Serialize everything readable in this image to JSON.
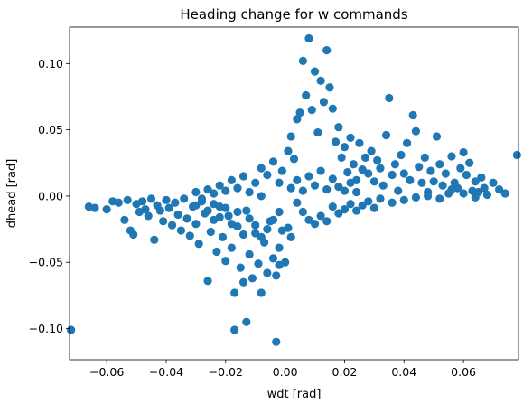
{
  "chart_data": {
    "type": "scatter",
    "title": "Heading change for w commands",
    "xlabel": "wdt [rad]",
    "ylabel": "dhead [rad]",
    "xlim": [
      -0.0725,
      0.0785
    ],
    "ylim": [
      -0.1235,
      0.1275
    ],
    "xticks": [
      -0.06,
      -0.04,
      -0.02,
      0.0,
      0.02,
      0.04,
      0.06
    ],
    "xtick_labels": [
      "−0.06",
      "−0.04",
      "−0.02",
      "0.00",
      "0.02",
      "0.04",
      "0.06"
    ],
    "yticks": [
      -0.1,
      -0.05,
      0.0,
      0.05,
      0.1
    ],
    "ytick_labels": [
      "−0.10",
      "−0.05",
      "0.00",
      "0.05",
      "0.10"
    ],
    "grid": false,
    "legend": "none",
    "marker_color": "#1f77b4",
    "series": [
      {
        "points": [
          [
            -0.072,
            -0.101
          ],
          [
            -0.066,
            -0.008
          ],
          [
            -0.064,
            -0.009
          ],
          [
            -0.06,
            -0.01
          ],
          [
            -0.058,
            -0.004
          ],
          [
            -0.056,
            -0.005
          ],
          [
            -0.054,
            -0.018
          ],
          [
            -0.053,
            -0.003
          ],
          [
            -0.052,
            -0.026
          ],
          [
            -0.051,
            -0.029
          ],
          [
            -0.05,
            -0.006
          ],
          [
            -0.049,
            -0.012
          ],
          [
            -0.048,
            -0.004
          ],
          [
            -0.047,
            -0.01
          ],
          [
            -0.046,
            -0.015
          ],
          [
            -0.045,
            -0.002
          ],
          [
            -0.044,
            -0.033
          ],
          [
            -0.043,
            -0.007
          ],
          [
            -0.042,
            -0.011
          ],
          [
            -0.041,
            -0.019
          ],
          [
            -0.04,
            -0.003
          ],
          [
            -0.039,
            -0.009
          ],
          [
            -0.038,
            -0.022
          ],
          [
            -0.037,
            -0.005
          ],
          [
            -0.036,
            -0.014
          ],
          [
            -0.035,
            -0.026
          ],
          [
            -0.034,
            -0.002
          ],
          [
            -0.033,
            -0.017
          ],
          [
            -0.032,
            -0.03
          ],
          [
            -0.031,
            -0.008
          ],
          [
            -0.03,
            -0.021
          ],
          [
            -0.029,
            -0.036
          ],
          [
            -0.028,
            -0.004
          ],
          [
            -0.027,
            -0.013
          ],
          [
            -0.026,
            -0.064
          ],
          [
            -0.025,
            -0.027
          ],
          [
            -0.024,
            -0.018
          ],
          [
            -0.023,
            -0.042
          ],
          [
            -0.022,
            -0.008
          ],
          [
            -0.021,
            -0.031
          ],
          [
            -0.02,
            -0.049
          ],
          [
            -0.019,
            -0.015
          ],
          [
            -0.018,
            -0.039
          ],
          [
            -0.017,
            -0.073
          ],
          [
            -0.016,
            -0.023
          ],
          [
            -0.015,
            -0.054
          ],
          [
            -0.014,
            -0.065
          ],
          [
            -0.013,
            -0.011
          ],
          [
            -0.012,
            -0.044
          ],
          [
            -0.011,
            -0.062
          ],
          [
            -0.01,
            -0.028
          ],
          [
            -0.009,
            -0.051
          ],
          [
            -0.008,
            -0.073
          ],
          [
            -0.007,
            -0.035
          ],
          [
            -0.006,
            -0.058
          ],
          [
            -0.005,
            -0.019
          ],
          [
            -0.004,
            -0.047
          ],
          [
            -0.003,
            -0.11
          ],
          [
            -0.002,
            -0.039
          ],
          [
            -0.001,
            -0.026
          ],
          [
            -0.017,
            -0.101
          ],
          [
            -0.013,
            -0.095
          ],
          [
            0.0,
            -0.05
          ],
          [
            0.001,
            -0.024
          ],
          [
            0.002,
            -0.031
          ],
          [
            -0.003,
            -0.06
          ],
          [
            -0.002,
            -0.052
          ],
          [
            -0.001,
            0.019
          ],
          [
            0.001,
            0.034
          ],
          [
            0.002,
            0.045
          ],
          [
            0.003,
            0.028
          ],
          [
            0.004,
            0.058
          ],
          [
            0.005,
            0.063
          ],
          [
            0.006,
            0.102
          ],
          [
            0.007,
            0.076
          ],
          [
            0.008,
            0.119
          ],
          [
            0.009,
            0.065
          ],
          [
            0.01,
            0.094
          ],
          [
            0.011,
            0.048
          ],
          [
            0.012,
            0.087
          ],
          [
            0.013,
            0.071
          ],
          [
            0.014,
            0.11
          ],
          [
            0.015,
            0.082
          ],
          [
            0.016,
            0.066
          ],
          [
            0.017,
            0.041
          ],
          [
            0.018,
            0.052
          ],
          [
            0.019,
            0.029
          ],
          [
            0.02,
            0.037
          ],
          [
            0.021,
            0.018
          ],
          [
            0.022,
            0.044
          ],
          [
            0.023,
            0.024
          ],
          [
            0.024,
            0.012
          ],
          [
            0.025,
            0.04
          ],
          [
            0.026,
            0.02
          ],
          [
            0.027,
            0.029
          ],
          [
            0.028,
            0.017
          ],
          [
            0.029,
            0.034
          ],
          [
            0.03,
            0.011
          ],
          [
            0.031,
            0.027
          ],
          [
            0.032,
            0.021
          ],
          [
            0.033,
            0.008
          ],
          [
            0.034,
            0.046
          ],
          [
            0.035,
            0.074
          ],
          [
            0.036,
            0.016
          ],
          [
            0.037,
            0.024
          ],
          [
            0.038,
            0.004
          ],
          [
            0.039,
            0.031
          ],
          [
            0.04,
            0.017
          ],
          [
            0.041,
            0.04
          ],
          [
            0.042,
            0.012
          ],
          [
            0.043,
            0.061
          ],
          [
            0.044,
            0.049
          ],
          [
            0.045,
            0.022
          ],
          [
            0.046,
            0.01
          ],
          [
            0.047,
            0.029
          ],
          [
            0.048,
            0.003
          ],
          [
            0.049,
            0.019
          ],
          [
            0.05,
            0.011
          ],
          [
            0.051,
            0.045
          ],
          [
            0.052,
            0.024
          ],
          [
            0.053,
            0.008
          ],
          [
            0.054,
            0.017
          ],
          [
            0.055,
            0.002
          ],
          [
            0.056,
            0.03
          ],
          [
            0.057,
            0.01
          ],
          [
            0.058,
            0.006
          ],
          [
            0.059,
            0.021
          ],
          [
            0.06,
            0.033
          ],
          [
            0.061,
            0.016
          ],
          [
            0.062,
            0.025
          ],
          [
            0.063,
            0.004
          ],
          [
            0.064,
            0.011
          ],
          [
            0.065,
            0.003
          ],
          [
            0.066,
            0.014
          ],
          [
            0.067,
            0.006
          ],
          [
            0.068,
            0.001
          ],
          [
            0.07,
            0.01
          ],
          [
            0.072,
            0.005
          ],
          [
            0.074,
            0.002
          ],
          [
            0.078,
            0.031
          ],
          [
            0.004,
            -0.005
          ],
          [
            0.006,
            -0.012
          ],
          [
            0.008,
            -0.018
          ],
          [
            0.01,
            -0.021
          ],
          [
            0.012,
            -0.015
          ],
          [
            0.014,
            -0.019
          ],
          [
            0.016,
            -0.008
          ],
          [
            0.018,
            -0.013
          ],
          [
            0.02,
            -0.01
          ],
          [
            0.022,
            -0.006
          ],
          [
            0.024,
            -0.011
          ],
          [
            0.026,
            -0.007
          ],
          [
            0.028,
            -0.004
          ],
          [
            0.03,
            -0.009
          ],
          [
            0.032,
            -0.002
          ],
          [
            -0.03,
            0.003
          ],
          [
            -0.026,
            0.005
          ],
          [
            -0.022,
            0.008
          ],
          [
            -0.018,
            0.012
          ],
          [
            -0.014,
            0.015
          ],
          [
            -0.01,
            0.01
          ],
          [
            -0.008,
            0.021
          ],
          [
            -0.006,
            0.016
          ],
          [
            -0.004,
            0.026
          ],
          [
            -0.002,
            0.01
          ],
          [
            -0.024,
            0.002
          ],
          [
            -0.02,
            0.004
          ],
          [
            -0.016,
            0.006
          ],
          [
            -0.012,
            0.003
          ],
          [
            -0.008,
            0.0
          ],
          [
            0.036,
            -0.005
          ],
          [
            0.04,
            -0.003
          ],
          [
            0.044,
            -0.001
          ],
          [
            0.048,
            0.0
          ],
          [
            0.052,
            -0.002
          ],
          [
            0.056,
            0.005
          ],
          [
            0.06,
            0.002
          ],
          [
            0.064,
            -0.001
          ],
          [
            0.002,
            0.006
          ],
          [
            0.004,
            0.012
          ],
          [
            0.006,
            0.004
          ],
          [
            0.008,
            0.015
          ],
          [
            0.01,
            0.008
          ],
          [
            0.012,
            0.019
          ],
          [
            0.014,
            0.005
          ],
          [
            0.016,
            0.013
          ],
          [
            0.018,
            0.007
          ],
          [
            0.02,
            0.004
          ],
          [
            0.022,
            0.01
          ],
          [
            0.024,
            0.003
          ],
          [
            -0.002,
            -0.012
          ],
          [
            -0.004,
            -0.018
          ],
          [
            -0.006,
            -0.025
          ],
          [
            -0.008,
            -0.031
          ],
          [
            -0.01,
            -0.022
          ],
          [
            -0.012,
            -0.017
          ],
          [
            -0.014,
            -0.029
          ],
          [
            -0.016,
            -0.012
          ],
          [
            -0.018,
            -0.021
          ],
          [
            -0.02,
            -0.009
          ],
          [
            -0.022,
            -0.016
          ],
          [
            -0.024,
            -0.006
          ],
          [
            -0.026,
            -0.011
          ],
          [
            -0.028,
            -0.002
          ],
          [
            -0.03,
            -0.007
          ]
        ]
      }
    ]
  }
}
